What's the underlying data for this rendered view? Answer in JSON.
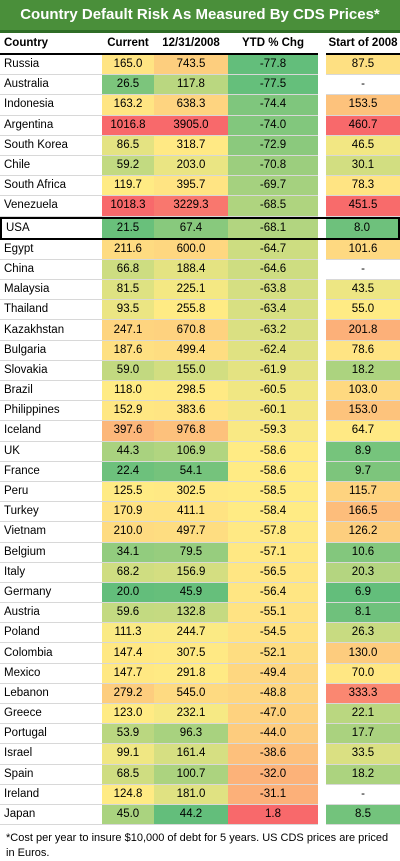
{
  "title": "Country Default Risk As Measured By CDS Prices*",
  "headers": {
    "country": "Country",
    "current": "Current",
    "date": "12/31/2008",
    "ytd": "YTD % Chg",
    "start": "Start of 2008"
  },
  "colors": {
    "title_bg": "#4a8f3a",
    "good": "#63be7b",
    "mid": "#ffeb84",
    "bad": "#f8696b"
  },
  "rows": [
    {
      "country": "Russia",
      "current": "165.0",
      "date": "743.5",
      "ytd": "-77.8",
      "start": "87.5"
    },
    {
      "country": "Australia",
      "current": "26.5",
      "date": "117.8",
      "ytd": "-77.5",
      "start": "-"
    },
    {
      "country": "Indonesia",
      "current": "163.2",
      "date": "638.3",
      "ytd": "-74.4",
      "start": "153.5"
    },
    {
      "country": "Argentina",
      "current": "1016.8",
      "date": "3905.0",
      "ytd": "-74.0",
      "start": "460.7"
    },
    {
      "country": "South Korea",
      "current": "86.5",
      "date": "318.7",
      "ytd": "-72.9",
      "start": "46.5"
    },
    {
      "country": "Chile",
      "current": "59.2",
      "date": "203.0",
      "ytd": "-70.8",
      "start": "30.1"
    },
    {
      "country": "South Africa",
      "current": "119.7",
      "date": "395.7",
      "ytd": "-69.7",
      "start": "78.3"
    },
    {
      "country": "Venezuela",
      "current": "1018.3",
      "date": "3229.3",
      "ytd": "-68.5",
      "start": "451.5"
    },
    {
      "country": "USA",
      "current": "21.5",
      "date": "67.4",
      "ytd": "-68.1",
      "start": "8.0"
    },
    {
      "country": "Egypt",
      "current": "211.6",
      "date": "600.0",
      "ytd": "-64.7",
      "start": "101.6"
    },
    {
      "country": "China",
      "current": "66.8",
      "date": "188.4",
      "ytd": "-64.6",
      "start": "-"
    },
    {
      "country": "Malaysia",
      "current": "81.5",
      "date": "225.1",
      "ytd": "-63.8",
      "start": "43.5"
    },
    {
      "country": "Thailand",
      "current": "93.5",
      "date": "255.8",
      "ytd": "-63.4",
      "start": "55.0"
    },
    {
      "country": "Kazakhstan",
      "current": "247.1",
      "date": "670.8",
      "ytd": "-63.2",
      "start": "201.8"
    },
    {
      "country": "Bulgaria",
      "current": "187.6",
      "date": "499.4",
      "ytd": "-62.4",
      "start": "78.6"
    },
    {
      "country": "Slovakia",
      "current": "59.0",
      "date": "155.0",
      "ytd": "-61.9",
      "start": "18.2"
    },
    {
      "country": "Brazil",
      "current": "118.0",
      "date": "298.5",
      "ytd": "-60.5",
      "start": "103.0"
    },
    {
      "country": "Philippines",
      "current": "152.9",
      "date": "383.6",
      "ytd": "-60.1",
      "start": "153.0"
    },
    {
      "country": "Iceland",
      "current": "397.6",
      "date": "976.8",
      "ytd": "-59.3",
      "start": "64.7"
    },
    {
      "country": "UK",
      "current": "44.3",
      "date": "106.9",
      "ytd": "-58.6",
      "start": "8.9"
    },
    {
      "country": "France",
      "current": "22.4",
      "date": "54.1",
      "ytd": "-58.6",
      "start": "9.7"
    },
    {
      "country": "Peru",
      "current": "125.5",
      "date": "302.5",
      "ytd": "-58.5",
      "start": "115.7"
    },
    {
      "country": "Turkey",
      "current": "170.9",
      "date": "411.1",
      "ytd": "-58.4",
      "start": "166.5"
    },
    {
      "country": "Vietnam",
      "current": "210.0",
      "date": "497.7",
      "ytd": "-57.8",
      "start": "126.2"
    },
    {
      "country": "Belgium",
      "current": "34.1",
      "date": "79.5",
      "ytd": "-57.1",
      "start": "10.6"
    },
    {
      "country": "Italy",
      "current": "68.2",
      "date": "156.9",
      "ytd": "-56.5",
      "start": "20.3"
    },
    {
      "country": "Germany",
      "current": "20.0",
      "date": "45.9",
      "ytd": "-56.4",
      "start": "6.9"
    },
    {
      "country": "Austria",
      "current": "59.6",
      "date": "132.8",
      "ytd": "-55.1",
      "start": "8.1"
    },
    {
      "country": "Poland",
      "current": "111.3",
      "date": "244.7",
      "ytd": "-54.5",
      "start": "26.3"
    },
    {
      "country": "Colombia",
      "current": "147.4",
      "date": "307.5",
      "ytd": "-52.1",
      "start": "130.0"
    },
    {
      "country": "Mexico",
      "current": "147.7",
      "date": "291.8",
      "ytd": "-49.4",
      "start": "70.0"
    },
    {
      "country": "Lebanon",
      "current": "279.2",
      "date": "545.0",
      "ytd": "-48.8",
      "start": "333.3"
    },
    {
      "country": "Greece",
      "current": "123.0",
      "date": "232.1",
      "ytd": "-47.0",
      "start": "22.1"
    },
    {
      "country": "Portugal",
      "current": "53.9",
      "date": "96.3",
      "ytd": "-44.0",
      "start": "17.7"
    },
    {
      "country": "Israel",
      "current": "99.1",
      "date": "161.4",
      "ytd": "-38.6",
      "start": "33.5"
    },
    {
      "country": "Spain",
      "current": "68.5",
      "date": "100.7",
      "ytd": "-32.0",
      "start": "18.2"
    },
    {
      "country": "Ireland",
      "current": "124.8",
      "date": "181.0",
      "ytd": "-31.1",
      "start": "-"
    },
    {
      "country": "Japan",
      "current": "45.0",
      "date": "44.2",
      "ytd": "1.8",
      "start": "8.5"
    }
  ],
  "footnote": "*Cost per year to insure $10,000 of debt for 5 years.  US CDS prices are priced in Euros."
}
